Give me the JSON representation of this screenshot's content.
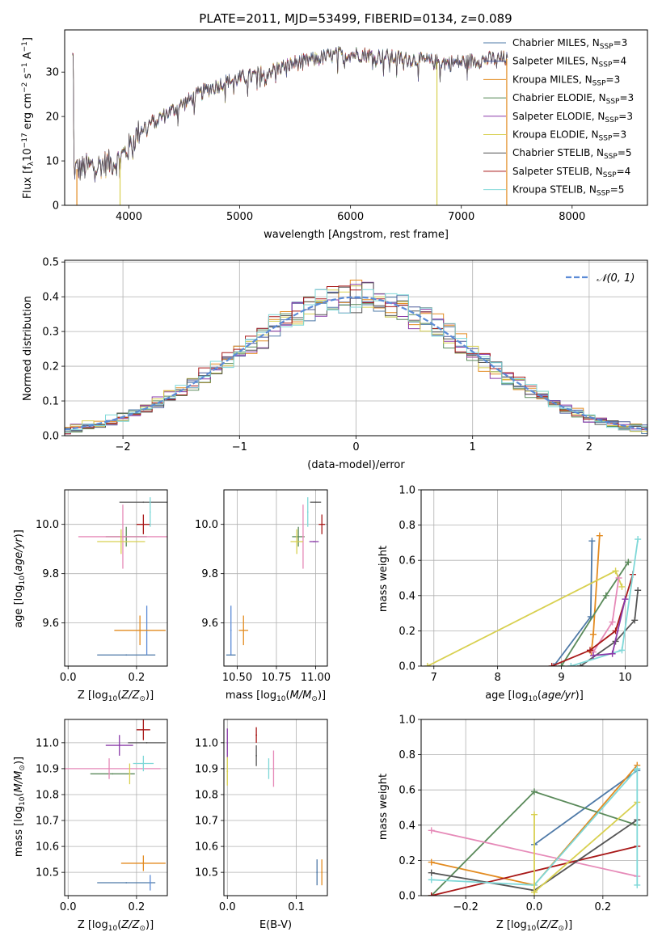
{
  "title": "PLATE=2011, MJD=53499, FIBERID=0134, z=0.089",
  "colors": {
    "Chabrier MILES": "#4e79a7",
    "Salpeter MILES": "#4a5a9a",
    "Kroupa MILES": "#e38b20",
    "Chabrier ELODIE": "#5a8a5a",
    "Salpeter ELODIE": "#8a3aa8",
    "Kroupa ELODIE": "#d8d050",
    "Chabrier STELIB": "#555555",
    "Salpeter STELIB": "#a81818",
    "Kroupa STELIB": "#7fd8d8",
    "pink": "#e68ab8",
    "normal": "#5b8bd6"
  },
  "chart_data": [
    {
      "id": "spectrum",
      "type": "line",
      "xlabel": "wavelength [Angstrom, rest frame]",
      "ylabel": "Flux [f",
      "ylabel_html": "Flux [fλ10⁻¹⁷ erg cm⁻² s⁻¹ A⁻¹]",
      "xlim": [
        3420,
        8680
      ],
      "ylim": [
        0,
        39.5
      ],
      "xticks": [
        4000,
        5000,
        6000,
        7000,
        8000
      ],
      "yticks": [
        0,
        10,
        20,
        30
      ],
      "continuum": {
        "x": [
          3500,
          3700,
          3900,
          4000,
          4100,
          4300,
          4500,
          4700,
          4900,
          5100,
          5300,
          5500,
          5700,
          5900,
          6100,
          6300,
          6500,
          6700,
          6900,
          7100,
          7300,
          7400
        ],
        "y": [
          8,
          9,
          10,
          13,
          17,
          20,
          23,
          26,
          28,
          29,
          30.5,
          32,
          33,
          34,
          34,
          33.5,
          33,
          32.5,
          32,
          32.5,
          33,
          33
        ]
      },
      "legend": [
        {
          "label": "Chabrier MILES",
          "nssp": "3"
        },
        {
          "label": "Salpeter MILES",
          "nssp": "4"
        },
        {
          "label": "Kroupa MILES",
          "nssp": "3"
        },
        {
          "label": "Chabrier ELODIE",
          "nssp": "3"
        },
        {
          "label": "Salpeter ELODIE",
          "nssp": "3"
        },
        {
          "label": "Kroupa ELODIE",
          "nssp": "3"
        },
        {
          "label": "Chabrier STELIB",
          "nssp": "5"
        },
        {
          "label": "Salpeter STELIB",
          "nssp": "4"
        },
        {
          "label": "Kroupa STELIB",
          "nssp": "5"
        }
      ],
      "legend_sub": "SSP",
      "spikes": [
        {
          "x": 3530,
          "series": "Kroupa MILES"
        },
        {
          "x": 3920,
          "series": "Kroupa ELODIE"
        },
        {
          "x": 6780,
          "series": "Kroupa ELODIE"
        },
        {
          "x": 7410,
          "series": "Kroupa MILES"
        }
      ]
    },
    {
      "id": "residuals",
      "type": "line",
      "xlabel": "(data-model)/error",
      "ylabel": "Normed distribution",
      "xlim": [
        -2.5,
        2.5
      ],
      "ylim": [
        0,
        0.505
      ],
      "xticks": [
        -2,
        -1,
        0,
        1,
        2
      ],
      "yticks": [
        0.0,
        0.1,
        0.2,
        0.3,
        0.4,
        0.5
      ],
      "grid": true,
      "legend": "top-right",
      "legend_label": "𝒩(0, 1)",
      "bin_width": 0.1
    },
    {
      "id": "z-age",
      "type": "scatter",
      "xlabel": "Z [log",
      "ylabel": "age  [log",
      "xlim": [
        -0.01,
        0.29
      ],
      "ylim": [
        9.425,
        10.14
      ],
      "xticks": [
        0.0,
        0.2
      ],
      "yticks": [
        9.6,
        9.8,
        10.0
      ],
      "grid": true,
      "points": [
        {
          "s": "Chabrier MILES",
          "x": 0.17,
          "y": 9.47,
          "xe": 0.085,
          "ye": 0.0
        },
        {
          "s": "normal",
          "x": 0.23,
          "y": 9.57,
          "xe": 0.0,
          "ye": 0.1
        },
        {
          "s": "Kroupa MILES",
          "x": 0.21,
          "y": 9.57,
          "xe": 0.075,
          "ye": 0.06
        },
        {
          "s": "Chabrier ELODIE",
          "x": 0.17,
          "y": 9.95,
          "xe": 0.06,
          "ye": 0.04
        },
        {
          "s": "pink",
          "x": 0.16,
          "y": 9.95,
          "xe": 0.13,
          "ye": 0.13
        },
        {
          "s": "Kroupa ELODIE",
          "x": 0.155,
          "y": 9.93,
          "xe": 0.07,
          "ye": 0.05
        },
        {
          "s": "Salpeter STELIB",
          "x": 0.22,
          "y": 10.0,
          "xe": 0.02,
          "ye": 0.04
        },
        {
          "s": "Chabrier STELIB",
          "x": 0.22,
          "y": 10.09,
          "xe": 0.07,
          "ye": 0.0
        },
        {
          "s": "Kroupa STELIB",
          "x": 0.24,
          "y": 10.05,
          "xe": 0.0,
          "ye": 0.06
        }
      ]
    },
    {
      "id": "mass-age",
      "type": "scatter",
      "xlabel": "mass [log",
      "ylabel": "",
      "xlim": [
        10.415,
        11.075
      ],
      "ylim": [
        9.425,
        10.14
      ],
      "xticks": [
        10.5,
        10.75,
        11.0
      ],
      "yticks": [
        9.6,
        9.8,
        10.0
      ],
      "grid": true,
      "points": [
        {
          "s": "Chabrier MILES",
          "x": 10.46,
          "y": 9.47,
          "xe": 0.03,
          "ye": 0.0
        },
        {
          "s": "normal",
          "x": 10.46,
          "y": 9.57,
          "xe": 0.0,
          "ye": 0.1
        },
        {
          "s": "Kroupa MILES",
          "x": 10.54,
          "y": 9.57,
          "xe": 0.03,
          "ye": 0.06
        },
        {
          "s": "Chabrier ELODIE",
          "x": 10.89,
          "y": 9.95,
          "xe": 0.04,
          "ye": 0.04
        },
        {
          "s": "pink",
          "x": 10.92,
          "y": 9.95,
          "xe": 0.0,
          "ye": 0.13
        },
        {
          "s": "Kroupa ELODIE",
          "x": 10.88,
          "y": 9.93,
          "xe": 0.04,
          "ye": 0.05
        },
        {
          "s": "Salpeter ELODIE",
          "x": 10.99,
          "y": 9.93,
          "xe": 0.03,
          "ye": 0.0
        },
        {
          "s": "Salpeter STELIB",
          "x": 11.04,
          "y": 10.0,
          "xe": 0.02,
          "ye": 0.04
        },
        {
          "s": "Chabrier STELIB",
          "x": 11.0,
          "y": 10.09,
          "xe": 0.035,
          "ye": 0.0
        },
        {
          "s": "Kroupa STELIB",
          "x": 10.95,
          "y": 10.05,
          "xe": 0.0,
          "ye": 0.06
        }
      ]
    },
    {
      "id": "age-weight",
      "type": "line",
      "xlabel": "age  [log",
      "ylabel": "mass weight",
      "xlim": [
        6.8,
        10.35
      ],
      "ylim": [
        0,
        1.0
      ],
      "xticks": [
        7,
        8,
        9,
        10
      ],
      "yticks": [
        0.0,
        0.2,
        0.4,
        0.6,
        0.8,
        1.0
      ],
      "grid": true,
      "series": [
        {
          "s": "Chabrier MILES",
          "x": [
            8.88,
            9.46,
            9.48
          ],
          "y": [
            0.0,
            0.28,
            0.71
          ]
        },
        {
          "s": "Kroupa MILES",
          "x": [
            9.47,
            9.5,
            9.6
          ],
          "y": [
            0.08,
            0.18,
            0.74
          ]
        },
        {
          "s": "Kroupa ELODIE",
          "x": [
            6.9,
            9.85,
            9.95
          ],
          "y": [
            0.0,
            0.54,
            0.45
          ]
        },
        {
          "s": "Chabrier ELODIE",
          "x": [
            9.0,
            9.7,
            10.05
          ],
          "y": [
            0.0,
            0.4,
            0.59
          ]
        },
        {
          "s": "pink",
          "x": [
            9.5,
            9.8,
            9.9
          ],
          "y": [
            0.08,
            0.25,
            0.5
          ]
        },
        {
          "s": "Salpeter STELIB",
          "x": [
            8.85,
            9.45,
            9.85,
            10.12
          ],
          "y": [
            0.0,
            0.09,
            0.2,
            0.52
          ]
        },
        {
          "s": "Chabrier STELIB",
          "x": [
            9.3,
            9.85,
            10.15,
            10.2
          ],
          "y": [
            0.0,
            0.14,
            0.26,
            0.43
          ]
        },
        {
          "s": "Kroupa STELIB",
          "x": [
            9.15,
            9.95,
            10.2
          ],
          "y": [
            0.0,
            0.09,
            0.72
          ]
        },
        {
          "s": "Salpeter ELODIE",
          "x": [
            9.5,
            9.8,
            10.0
          ],
          "y": [
            0.06,
            0.07,
            0.38
          ]
        }
      ]
    },
    {
      "id": "z-mass",
      "type": "scatter",
      "xlabel": "Z [log",
      "ylabel": "mass [log",
      "xlim": [
        -0.01,
        0.29
      ],
      "ylim": [
        10.41,
        11.09
      ],
      "xticks": [
        0.0,
        0.2
      ],
      "yticks": [
        10.5,
        10.6,
        10.7,
        10.8,
        10.9,
        11.0
      ],
      "grid": true,
      "points": [
        {
          "s": "Chabrier MILES",
          "x": 0.17,
          "y": 10.46,
          "xe": 0.085,
          "ye": 0.0
        },
        {
          "s": "normal",
          "x": 0.24,
          "y": 10.46,
          "xe": 0.0,
          "ye": 0.03
        },
        {
          "s": "Kroupa MILES",
          "x": 0.22,
          "y": 10.535,
          "xe": 0.065,
          "ye": 0.03
        },
        {
          "s": "Chabrier ELODIE",
          "x": 0.13,
          "y": 10.88,
          "xe": 0.065,
          "ye": 0.0
        },
        {
          "s": "pink",
          "x": 0.12,
          "y": 10.9,
          "xe": 0.15,
          "ye": 0.04
        },
        {
          "s": "Kroupa ELODIE",
          "x": 0.18,
          "y": 10.88,
          "xe": 0.0,
          "ye": 0.04
        },
        {
          "s": "Salpeter ELODIE",
          "x": 0.15,
          "y": 10.99,
          "xe": 0.04,
          "ye": 0.04
        },
        {
          "s": "Chabrier STELIB",
          "x": 0.23,
          "y": 11.0,
          "xe": 0.055,
          "ye": 0.0
        },
        {
          "s": "Kroupa STELIB",
          "x": 0.22,
          "y": 10.92,
          "xe": 0.03,
          "ye": 0.03
        },
        {
          "s": "Salpeter STELIB",
          "x": 0.22,
          "y": 11.05,
          "xe": 0.02,
          "ye": 0.04
        }
      ]
    },
    {
      "id": "ebv-mass",
      "type": "scatter",
      "xlabel": "E(B-V)",
      "ylabel": "",
      "xlim": [
        -0.005,
        0.145
      ],
      "ylim": [
        10.41,
        11.09
      ],
      "xticks": [
        0.0,
        0.1
      ],
      "yticks": [
        10.5,
        10.6,
        10.7,
        10.8,
        10.9,
        11.0
      ],
      "grid": true,
      "points": [
        {
          "s": "Salpeter ELODIE",
          "x": 0.0,
          "y": 11.0,
          "xe": 0.0,
          "ye": 0.055
        },
        {
          "s": "Kroupa ELODIE",
          "x": 0.0,
          "y": 10.89,
          "xe": 0.0,
          "ye": 0.055
        },
        {
          "s": "Salpeter STELIB",
          "x": 0.042,
          "y": 11.03,
          "xe": 0.0,
          "ye": 0.03
        },
        {
          "s": "Chabrier STELIB",
          "x": 0.042,
          "y": 10.95,
          "xe": 0.0,
          "ye": 0.04
        },
        {
          "s": "pink",
          "x": 0.067,
          "y": 10.9,
          "xe": 0.0,
          "ye": 0.07
        },
        {
          "s": "Kroupa STELIB",
          "x": 0.06,
          "y": 10.9,
          "xe": 0.0,
          "ye": 0.04
        },
        {
          "s": "Chabrier MILES",
          "x": 0.13,
          "y": 10.5,
          "xe": 0.0,
          "ye": 0.05
        },
        {
          "s": "Kroupa MILES",
          "x": 0.137,
          "y": 10.5,
          "xe": 0.0,
          "ye": 0.05
        }
      ]
    },
    {
      "id": "z-weight",
      "type": "line",
      "xlabel": "Z [log",
      "ylabel": "mass weight",
      "xlim": [
        -0.33,
        0.33
      ],
      "ylim": [
        0,
        1.0
      ],
      "xticks": [
        -0.2,
        0.0,
        0.2
      ],
      "yticks": [
        0.0,
        0.2,
        0.4,
        0.6,
        0.8,
        1.0
      ],
      "grid": true,
      "series": [
        {
          "s": "Chabrier MILES",
          "x": [
            0.0,
            0.3
          ],
          "y": [
            0.29,
            0.71
          ]
        },
        {
          "s": "Kroupa MILES",
          "x": [
            -0.3,
            0.0,
            0.3
          ],
          "y": [
            0.19,
            0.06,
            0.74
          ]
        },
        {
          "s": "Chabrier ELODIE",
          "x": [
            -0.3,
            0.0,
            0.3
          ],
          "y": [
            0.0,
            0.59,
            0.4
          ]
        },
        {
          "s": "pink",
          "x": [
            -0.3,
            0.3
          ],
          "y": [
            0.37,
            0.11
          ]
        },
        {
          "s": "Salpeter STELIB",
          "x": [
            -0.3,
            0.3
          ],
          "y": [
            0.0,
            0.28
          ]
        },
        {
          "s": "Chabrier STELIB",
          "x": [
            -0.3,
            0.0,
            0.3
          ],
          "y": [
            0.13,
            0.03,
            0.43
          ]
        },
        {
          "s": "Kroupa ELODIE",
          "x": [
            0.0,
            0.3
          ],
          "y": [
            0.02,
            0.53
          ]
        },
        {
          "s": "Kroupa STELIB",
          "x": [
            -0.3,
            0.0,
            0.3
          ],
          "y": [
            0.09,
            0.06,
            0.72
          ]
        },
        {
          "s": "Kroupa ELODIE",
          "x": [
            0.0,
            0.0
          ],
          "y": [
            0.02,
            0.46
          ]
        },
        {
          "s": "Kroupa STELIB",
          "x": [
            0.3,
            0.3
          ],
          "y": [
            0.06,
            0.72
          ]
        }
      ]
    }
  ]
}
